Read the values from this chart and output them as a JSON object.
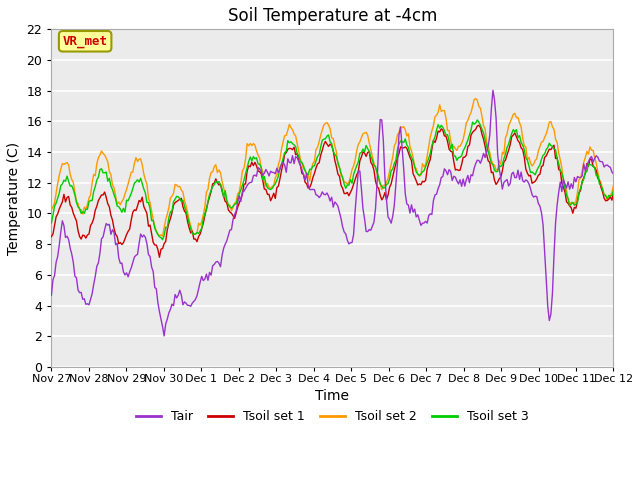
{
  "title": "Soil Temperature at -4cm",
  "xlabel": "Time",
  "ylabel": "Temperature (C)",
  "ylim": [
    0,
    22
  ],
  "yticks": [
    0,
    2,
    4,
    6,
    8,
    10,
    12,
    14,
    16,
    18,
    20,
    22
  ],
  "xtick_labels": [
    "Nov 27",
    "Nov 28",
    "Nov 29",
    "Nov 30",
    "Dec 1",
    "Dec 2",
    "Dec 3",
    "Dec 4",
    "Dec 5",
    "Dec 6",
    "Dec 7",
    "Dec 8",
    "Dec 9",
    "Dec 10",
    "Dec 11",
    "Dec 12"
  ],
  "annotation_text": "VR_met",
  "annotation_color": "#cc0000",
  "annotation_bg": "#ffff99",
  "line_colors": {
    "Tair": "#9933cc",
    "Tsoil1": "#cc0000",
    "Tsoil2": "#ff9900",
    "Tsoil3": "#00cc00"
  },
  "legend_labels": [
    "Tair",
    "Tsoil set 1",
    "Tsoil set 2",
    "Tsoil set 3"
  ],
  "fig_bg": "#ffffff",
  "plot_bg": "#ebebeb",
  "grid_color": "#ffffff",
  "title_fontsize": 12,
  "axis_fontsize": 10,
  "tick_fontsize": 9
}
